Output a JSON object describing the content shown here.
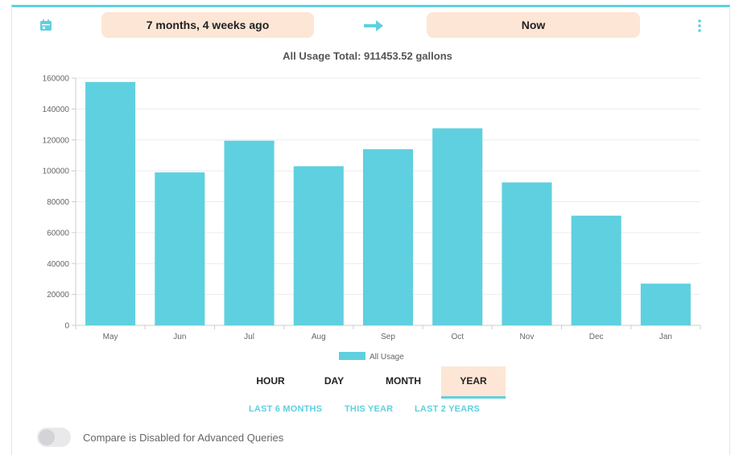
{
  "header": {
    "from_label": "7 months, 4 weeks ago",
    "to_label": "Now",
    "calendar_icon": "calendar-icon",
    "arrow_icon": "arrow-right-icon",
    "menu_icon": "kebab-menu-icon"
  },
  "colors": {
    "accent": "#5fd0df",
    "pill": "#fde6d6"
  },
  "chart_data": {
    "type": "bar",
    "title": "All Usage Total: 911453.52 gallons",
    "categories": [
      "May",
      "Jun",
      "Jul",
      "Aug",
      "Sep",
      "Oct",
      "Nov",
      "Dec",
      "Jan"
    ],
    "series": [
      {
        "name": "All Usage",
        "values": [
          157500,
          99000,
          119500,
          103000,
          114000,
          127500,
          92500,
          71000,
          27000
        ]
      }
    ],
    "ylim": [
      0,
      160000
    ],
    "yticks": [
      0,
      20000,
      40000,
      60000,
      80000,
      100000,
      120000,
      140000,
      160000
    ],
    "grid": true,
    "legend_position": "bottom"
  },
  "tabs": [
    {
      "label": "HOUR",
      "active": false
    },
    {
      "label": "DAY",
      "active": false
    },
    {
      "label": "MONTH",
      "active": false
    },
    {
      "label": "YEAR",
      "active": true
    }
  ],
  "quick_ranges": [
    "LAST 6 MONTHS",
    "THIS YEAR",
    "LAST 2 YEARS"
  ],
  "compare": {
    "text": "Compare is Disabled for Advanced Queries",
    "enabled": false
  }
}
